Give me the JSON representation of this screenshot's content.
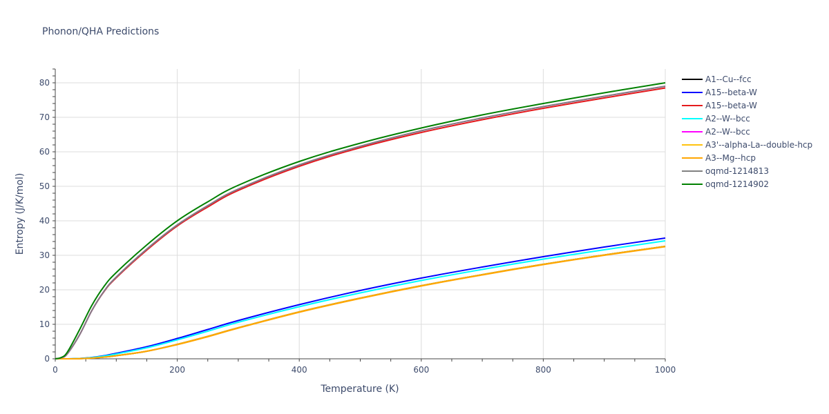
{
  "chart_data": {
    "type": "line",
    "title": "Phonon/QHA Predictions",
    "xlabel": "Temperature (K)",
    "ylabel": "Entropy (J/K/mol)",
    "xlim": [
      0,
      1000
    ],
    "ylim": [
      0,
      84
    ],
    "xticks": [
      0,
      200,
      400,
      600,
      800,
      1000
    ],
    "yticks": [
      0,
      10,
      20,
      30,
      40,
      50,
      60,
      70,
      80
    ],
    "grid": true,
    "legend_position": "right",
    "series": [
      {
        "name": "A1--Cu--fcc",
        "color": "#000000",
        "x": [
          0,
          20,
          40,
          60,
          80,
          100,
          150,
          200,
          250,
          300,
          400,
          500,
          600,
          700,
          800,
          900,
          1000
        ],
        "y": [
          0,
          0,
          0.05,
          0.2,
          0.5,
          0.9,
          2.2,
          4.2,
          6.5,
          9,
          13.6,
          17.6,
          21.2,
          24.4,
          27.4,
          30.1,
          32.6
        ]
      },
      {
        "name": "A15--beta-W",
        "color": "#0000ff",
        "x": [
          0,
          20,
          40,
          60,
          80,
          100,
          150,
          200,
          250,
          300,
          400,
          500,
          600,
          700,
          800,
          900,
          1000
        ],
        "y": [
          0,
          0,
          0.1,
          0.4,
          0.9,
          1.6,
          3.5,
          5.9,
          8.5,
          11.1,
          15.7,
          19.8,
          23.4,
          26.6,
          29.6,
          32.4,
          35
        ]
      },
      {
        "name": "A15--beta-W",
        "color": "#e41a1c",
        "x": [
          0,
          10,
          20,
          40,
          60,
          80,
          100,
          150,
          200,
          250,
          300,
          400,
          500,
          600,
          700,
          800,
          900,
          1000
        ],
        "y": [
          0,
          0.3,
          1.5,
          7,
          14,
          19.5,
          23.5,
          31.5,
          38.5,
          44,
          48.8,
          55.8,
          61.2,
          65.6,
          69.3,
          72.6,
          75.6,
          78.5
        ]
      },
      {
        "name": "A2--W--bcc",
        "color": "#00ffff",
        "x": [
          0,
          20,
          40,
          60,
          80,
          100,
          150,
          200,
          250,
          300,
          400,
          500,
          600,
          700,
          800,
          900,
          1000
        ],
        "y": [
          0,
          0,
          0.1,
          0.35,
          0.8,
          1.4,
          3.2,
          5.5,
          8,
          10.6,
          15.1,
          19.1,
          22.7,
          25.9,
          28.9,
          31.6,
          34.2
        ]
      },
      {
        "name": "A2--W--bcc",
        "color": "#ff00ff",
        "x": [
          0,
          10,
          20,
          40,
          60,
          80,
          100,
          150,
          200,
          250,
          300,
          400,
          500,
          600,
          700,
          800,
          900,
          1000
        ],
        "y": [
          0,
          0.3,
          1.5,
          7,
          14,
          19.6,
          23.7,
          31.8,
          38.8,
          44.4,
          49.2,
          56.2,
          61.6,
          66.1,
          69.8,
          73.1,
          76.1,
          79
        ]
      },
      {
        "name": "A3'--alpha-La--double-hcp",
        "color": "#ffc20e",
        "x": [
          0,
          20,
          40,
          60,
          80,
          100,
          150,
          200,
          250,
          300,
          400,
          500,
          600,
          700,
          800,
          900,
          1000
        ],
        "y": [
          0,
          0,
          0.05,
          0.2,
          0.5,
          0.9,
          2.2,
          4.2,
          6.5,
          9,
          13.6,
          17.6,
          21.2,
          24.4,
          27.4,
          30.1,
          32.6
        ]
      },
      {
        "name": "A3--Mg--hcp",
        "color": "#ffa500",
        "x": [
          0,
          20,
          40,
          60,
          80,
          100,
          150,
          200,
          250,
          300,
          400,
          500,
          600,
          700,
          800,
          900,
          1000
        ],
        "y": [
          0,
          0,
          0.05,
          0.2,
          0.5,
          0.9,
          2.2,
          4.1,
          6.4,
          8.9,
          13.5,
          17.5,
          21.1,
          24.3,
          27.3,
          30,
          32.5
        ]
      },
      {
        "name": "oqmd-1214813",
        "color": "#808080",
        "x": [
          0,
          10,
          20,
          40,
          60,
          80,
          100,
          150,
          200,
          250,
          300,
          400,
          500,
          600,
          700,
          800,
          900,
          1000
        ],
        "y": [
          0,
          0.3,
          1.5,
          7,
          14,
          19.6,
          23.7,
          31.8,
          38.8,
          44.4,
          49.2,
          56.2,
          61.6,
          66.1,
          69.8,
          73.1,
          76.1,
          79
        ]
      },
      {
        "name": "oqmd-1214902",
        "color": "#008000",
        "x": [
          0,
          10,
          20,
          40,
          60,
          80,
          100,
          150,
          200,
          250,
          300,
          400,
          500,
          600,
          700,
          800,
          900,
          1000
        ],
        "y": [
          0,
          0.4,
          2,
          8.5,
          15.5,
          21,
          25,
          33,
          40,
          45.5,
          50.3,
          57.2,
          62.5,
          66.9,
          70.7,
          74,
          77.1,
          80
        ]
      }
    ]
  }
}
